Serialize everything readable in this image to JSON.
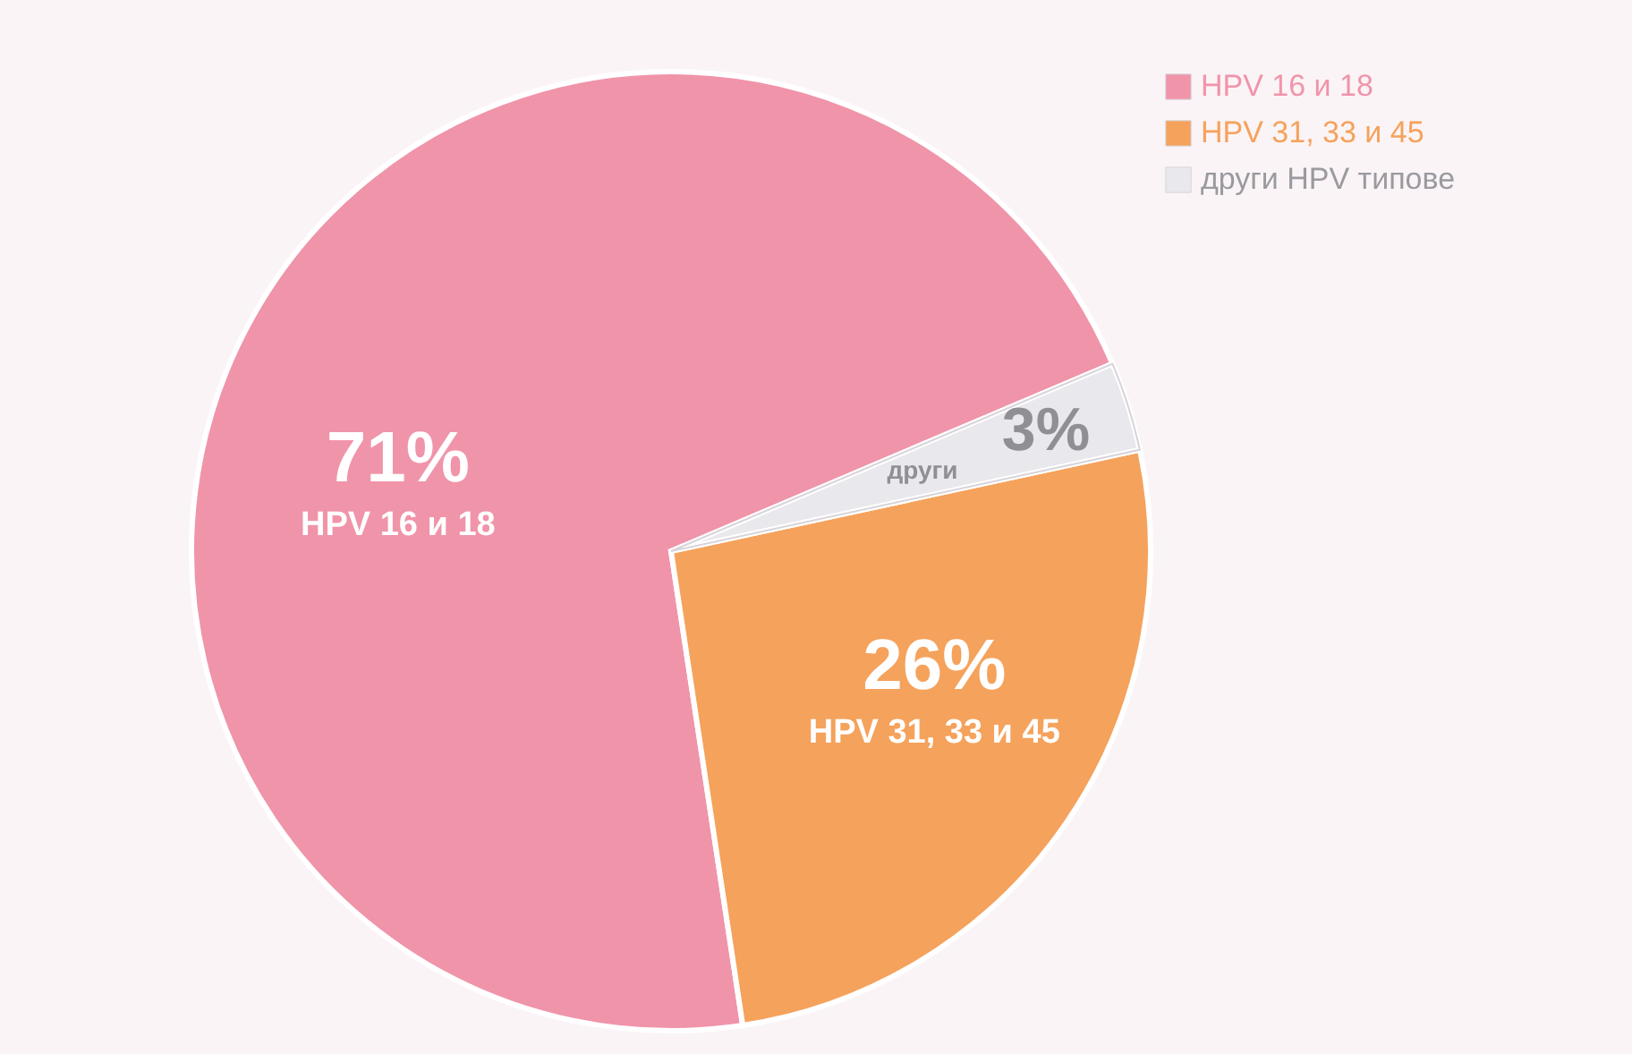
{
  "chart_data": {
    "type": "pie",
    "categories": [
      "HPV 16 и 18",
      "HPV 31, 33 и 45",
      "други HPV типове"
    ],
    "values": [
      71,
      26,
      3
    ],
    "colors": [
      "#f094aa",
      "#f5a25c",
      "#e9e8ed"
    ],
    "value_labels": [
      "71%",
      "26%",
      "3%"
    ],
    "annotations": [
      "HPV 16 и 18",
      "HPV 31, 33 и 45",
      "други"
    ],
    "legend": "top right"
  }
}
